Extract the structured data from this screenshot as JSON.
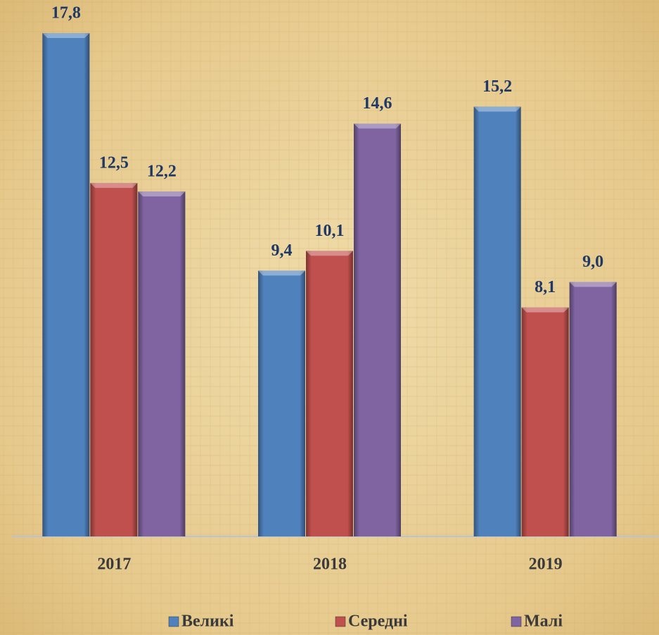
{
  "chart_data": {
    "type": "bar",
    "categories": [
      "2017",
      "2018",
      "2019"
    ],
    "series": [
      {
        "name": "Великі",
        "color": "#4f81bd",
        "values": [
          17.8,
          9.4,
          15.2
        ],
        "value_labels": [
          "17,8",
          "9,4",
          "15,2"
        ]
      },
      {
        "name": "Середні",
        "color": "#c0504d",
        "values": [
          12.5,
          10.1,
          8.1
        ],
        "value_labels": [
          "12,5",
          "10,1",
          "8,1"
        ]
      },
      {
        "name": "Малі",
        "color": "#8064a2",
        "values": [
          12.2,
          14.6,
          9.0
        ],
        "value_labels": [
          "12,2",
          "14,6",
          "9,0"
        ]
      }
    ],
    "legend": "bottom"
  }
}
